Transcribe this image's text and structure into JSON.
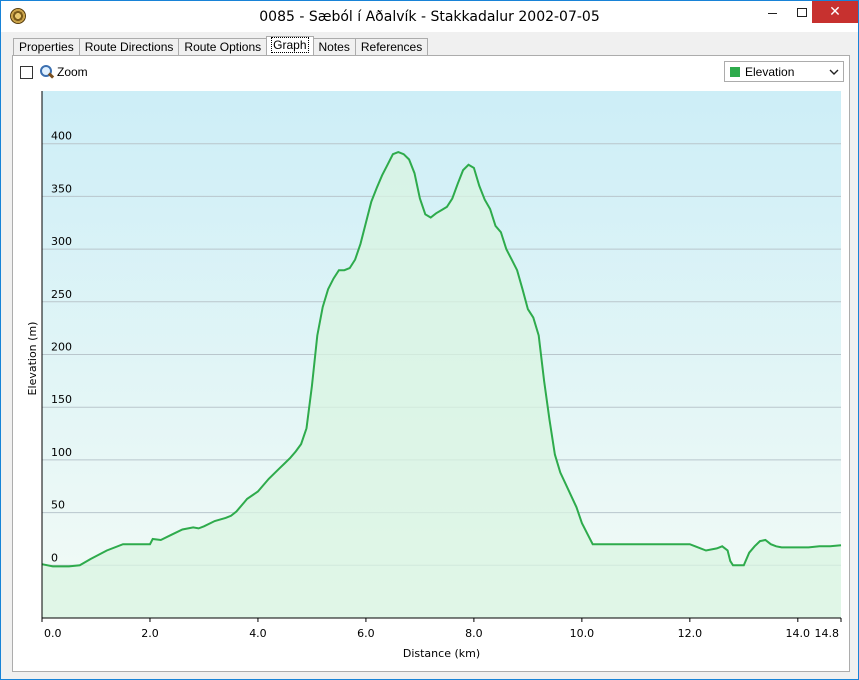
{
  "window": {
    "title": "0085 - Sæból í Aðalvík - Stakkadalur 2002-07-05",
    "close_glyph": "✕"
  },
  "tabs": [
    {
      "label": "Properties"
    },
    {
      "label": "Route Directions"
    },
    {
      "label": "Route Options"
    },
    {
      "label": "Graph",
      "active": true
    },
    {
      "label": "Notes"
    },
    {
      "label": "References"
    }
  ],
  "toolbar": {
    "zoom_label": "Zoom",
    "zoom_checked": false,
    "series_selected": "Elevation",
    "series_color": "#2eab4c"
  },
  "colors": {
    "line": "#2eab4c",
    "plot_top": "#cdeef7",
    "plot_bottom": "#f3fbf6",
    "fill": "#d9f4e2"
  },
  "chart_data": {
    "type": "area",
    "xlabel": "Distance  (km)",
    "ylabel": "Elevation (m)",
    "xlim": [
      0,
      14.8
    ],
    "ylim": [
      -50,
      450
    ],
    "x_ticks": [
      "0.0",
      "2.0",
      "4.0",
      "6.0",
      "8.0",
      "10.0",
      "12.0",
      "14.0",
      "14.8"
    ],
    "x_tick_values": [
      0,
      2,
      4,
      6,
      8,
      10,
      12,
      14,
      14.8
    ],
    "y_ticks": [
      "0",
      "50",
      "100",
      "150",
      "200",
      "250",
      "300",
      "350",
      "400"
    ],
    "y_tick_values": [
      0,
      50,
      100,
      150,
      200,
      250,
      300,
      350,
      400
    ],
    "grid": true,
    "legend": "none",
    "series": [
      {
        "name": "Elevation",
        "x": [
          0,
          0.2,
          0.5,
          0.7,
          0.9,
          1.2,
          1.5,
          1.8,
          2.0,
          2.05,
          2.2,
          2.4,
          2.6,
          2.8,
          2.9,
          3.0,
          3.2,
          3.4,
          3.5,
          3.6,
          3.75,
          3.8,
          4.0,
          4.2,
          4.4,
          4.5,
          4.6,
          4.7,
          4.8,
          4.9,
          5.0,
          5.1,
          5.2,
          5.3,
          5.4,
          5.5,
          5.6,
          5.7,
          5.8,
          5.9,
          6.0,
          6.1,
          6.2,
          6.3,
          6.4,
          6.5,
          6.6,
          6.7,
          6.8,
          6.9,
          7.0,
          7.1,
          7.2,
          7.3,
          7.4,
          7.5,
          7.6,
          7.7,
          7.8,
          7.9,
          8.0,
          8.1,
          8.2,
          8.3,
          8.4,
          8.5,
          8.6,
          8.7,
          8.8,
          8.9,
          9.0,
          9.1,
          9.2,
          9.3,
          9.4,
          9.5,
          9.6,
          9.7,
          9.8,
          9.9,
          10.0,
          10.1,
          10.2,
          10.3,
          10.4,
          10.5,
          10.6,
          10.7,
          10.8,
          11.0,
          11.5,
          12.0,
          12.1,
          12.3,
          12.5,
          12.6,
          12.7,
          12.75,
          12.8,
          12.9,
          13.0,
          13.1,
          13.2,
          13.3,
          13.4,
          13.5,
          13.6,
          13.7,
          13.8,
          14.0,
          14.2,
          14.4,
          14.6,
          14.8
        ],
        "values": [
          1,
          -1,
          -1,
          0,
          6,
          14,
          20,
          20,
          20,
          25,
          24,
          29,
          34,
          36,
          35,
          37,
          42,
          45,
          47,
          51,
          60,
          63,
          70,
          82,
          92,
          97,
          102,
          108,
          115,
          130,
          170,
          218,
          245,
          262,
          272,
          280,
          280,
          282,
          290,
          305,
          325,
          345,
          358,
          370,
          380,
          390,
          392,
          390,
          385,
          372,
          348,
          333,
          330,
          334,
          337,
          340,
          348,
          362,
          375,
          380,
          377,
          360,
          347,
          338,
          322,
          316,
          300,
          290,
          280,
          262,
          243,
          235,
          218,
          175,
          138,
          105,
          88,
          77,
          66,
          55,
          40,
          30,
          20,
          20,
          20,
          20,
          20,
          20,
          20,
          20,
          20,
          20,
          18,
          14,
          16,
          18,
          14,
          4,
          0,
          0,
          0,
          12,
          18,
          23,
          24,
          20,
          18,
          17,
          17,
          17,
          17,
          18,
          18,
          19
        ]
      }
    ]
  }
}
